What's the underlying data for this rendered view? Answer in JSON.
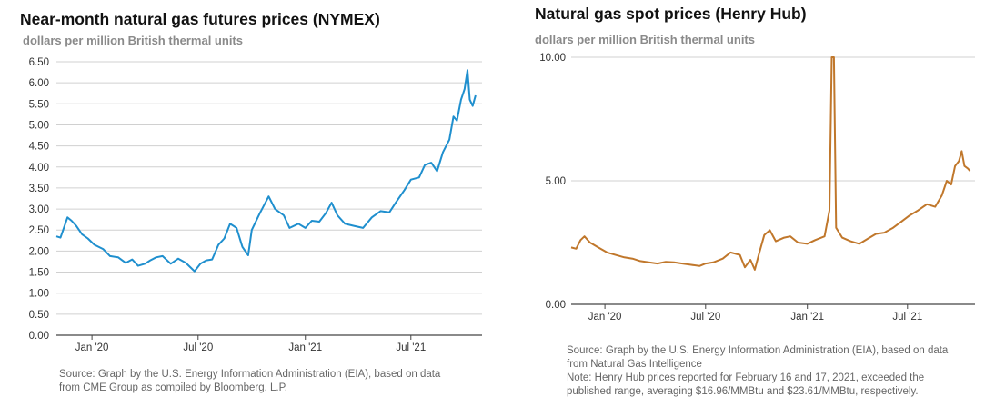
{
  "chart_data": [
    {
      "type": "line",
      "title": "Near-month natural gas futures prices (NYMEX)",
      "subtitle": "dollars per million British thermal units",
      "ylabel": "",
      "xlabel": "",
      "ylim": [
        0,
        6.5
      ],
      "xlim": [
        "2019-11-01",
        "2021-10-31"
      ],
      "yticks": [
        "6.50",
        "6.00",
        "5.50",
        "5.00",
        "4.50",
        "4.00",
        "3.50",
        "3.00",
        "2.50",
        "2.00",
        "1.50",
        "1.00",
        "0.50",
        "0.00"
      ],
      "xticks": [
        {
          "label": "Jan '20",
          "date": "2020-01-01"
        },
        {
          "label": "Jul '20",
          "date": "2020-07-01"
        },
        {
          "label": "Jan '21",
          "date": "2021-01-01"
        },
        {
          "label": "Jul '21",
          "date": "2021-07-01"
        }
      ],
      "grid": true,
      "series": [
        {
          "color": "#1f8fce",
          "points": [
            [
              "2019-11-01",
              2.35
            ],
            [
              "2019-11-08",
              2.32
            ],
            [
              "2019-11-15",
              2.6
            ],
            [
              "2019-11-20",
              2.8
            ],
            [
              "2019-11-27",
              2.72
            ],
            [
              "2019-12-05",
              2.6
            ],
            [
              "2019-12-15",
              2.4
            ],
            [
              "2019-12-25",
              2.3
            ],
            [
              "2020-01-05",
              2.15
            ],
            [
              "2020-01-20",
              2.05
            ],
            [
              "2020-02-01",
              1.88
            ],
            [
              "2020-02-15",
              1.85
            ],
            [
              "2020-02-28",
              1.72
            ],
            [
              "2020-03-10",
              1.8
            ],
            [
              "2020-03-20",
              1.65
            ],
            [
              "2020-04-01",
              1.7
            ],
            [
              "2020-04-10",
              1.78
            ],
            [
              "2020-04-20",
              1.85
            ],
            [
              "2020-05-01",
              1.88
            ],
            [
              "2020-05-15",
              1.7
            ],
            [
              "2020-05-28",
              1.82
            ],
            [
              "2020-06-10",
              1.72
            ],
            [
              "2020-06-25",
              1.52
            ],
            [
              "2020-07-05",
              1.7
            ],
            [
              "2020-07-15",
              1.78
            ],
            [
              "2020-07-25",
              1.8
            ],
            [
              "2020-08-05",
              2.15
            ],
            [
              "2020-08-15",
              2.3
            ],
            [
              "2020-08-25",
              2.65
            ],
            [
              "2020-09-05",
              2.55
            ],
            [
              "2020-09-15",
              2.1
            ],
            [
              "2020-09-25",
              1.9
            ],
            [
              "2020-10-01",
              2.5
            ],
            [
              "2020-10-15",
              2.9
            ],
            [
              "2020-10-30",
              3.3
            ],
            [
              "2020-11-10",
              3.0
            ],
            [
              "2020-11-25",
              2.85
            ],
            [
              "2020-12-05",
              2.55
            ],
            [
              "2020-12-20",
              2.65
            ],
            [
              "2021-01-01",
              2.55
            ],
            [
              "2021-01-12",
              2.72
            ],
            [
              "2021-01-25",
              2.7
            ],
            [
              "2021-02-05",
              2.9
            ],
            [
              "2021-02-15",
              3.15
            ],
            [
              "2021-02-25",
              2.85
            ],
            [
              "2021-03-10",
              2.65
            ],
            [
              "2021-03-25",
              2.6
            ],
            [
              "2021-04-10",
              2.55
            ],
            [
              "2021-04-25",
              2.8
            ],
            [
              "2021-05-10",
              2.95
            ],
            [
              "2021-05-25",
              2.92
            ],
            [
              "2021-06-05",
              3.15
            ],
            [
              "2021-06-20",
              3.45
            ],
            [
              "2021-07-01",
              3.7
            ],
            [
              "2021-07-15",
              3.75
            ],
            [
              "2021-07-25",
              4.05
            ],
            [
              "2021-08-05",
              4.1
            ],
            [
              "2021-08-15",
              3.9
            ],
            [
              "2021-08-25",
              4.35
            ],
            [
              "2021-09-05",
              4.65
            ],
            [
              "2021-09-12",
              5.2
            ],
            [
              "2021-09-18",
              5.1
            ],
            [
              "2021-09-25",
              5.6
            ],
            [
              "2021-10-01",
              5.85
            ],
            [
              "2021-10-06",
              6.3
            ],
            [
              "2021-10-10",
              5.6
            ],
            [
              "2021-10-15",
              5.45
            ],
            [
              "2021-10-20",
              5.7
            ]
          ]
        }
      ],
      "source": [
        "Source: Graph by the U.S. Energy Information Administration (EIA), based on data",
        "from CME Group as compiled by Bloomberg, L.P."
      ]
    },
    {
      "type": "line",
      "title": "Natural gas spot prices (Henry Hub)",
      "subtitle": "dollars per million British thermal units",
      "ylabel": "",
      "xlabel": "",
      "ylim": [
        0,
        10
      ],
      "xlim": [
        "2019-11-01",
        "2021-10-31"
      ],
      "yticks": [
        "10.00",
        "5.00",
        "0.00"
      ],
      "xticks": [
        {
          "label": "Jan '20",
          "date": "2020-01-01"
        },
        {
          "label": "Jul '20",
          "date": "2020-07-01"
        },
        {
          "label": "Jan '21",
          "date": "2021-01-01"
        },
        {
          "label": "Jul '21",
          "date": "2021-07-01"
        }
      ],
      "grid": true,
      "series": [
        {
          "color": "#c0772b",
          "points": [
            [
              "2019-11-01",
              2.3
            ],
            [
              "2019-11-10",
              2.25
            ],
            [
              "2019-11-18",
              2.6
            ],
            [
              "2019-11-25",
              2.75
            ],
            [
              "2019-12-05",
              2.5
            ],
            [
              "2019-12-20",
              2.3
            ],
            [
              "2020-01-05",
              2.1
            ],
            [
              "2020-01-20",
              2.0
            ],
            [
              "2020-02-05",
              1.9
            ],
            [
              "2020-02-20",
              1.85
            ],
            [
              "2020-03-05",
              1.75
            ],
            [
              "2020-03-20",
              1.7
            ],
            [
              "2020-04-05",
              1.65
            ],
            [
              "2020-04-20",
              1.72
            ],
            [
              "2020-05-05",
              1.7
            ],
            [
              "2020-05-20",
              1.65
            ],
            [
              "2020-06-05",
              1.6
            ],
            [
              "2020-06-20",
              1.55
            ],
            [
              "2020-07-01",
              1.65
            ],
            [
              "2020-07-15",
              1.7
            ],
            [
              "2020-08-01",
              1.85
            ],
            [
              "2020-08-15",
              2.1
            ],
            [
              "2020-09-01",
              2.0
            ],
            [
              "2020-09-10",
              1.5
            ],
            [
              "2020-09-20",
              1.8
            ],
            [
              "2020-09-28",
              1.4
            ],
            [
              "2020-10-05",
              2.0
            ],
            [
              "2020-10-15",
              2.8
            ],
            [
              "2020-10-25",
              3.0
            ],
            [
              "2020-11-05",
              2.55
            ],
            [
              "2020-11-20",
              2.7
            ],
            [
              "2020-12-01",
              2.75
            ],
            [
              "2020-12-15",
              2.5
            ],
            [
              "2021-01-01",
              2.45
            ],
            [
              "2021-01-15",
              2.6
            ],
            [
              "2021-02-01",
              2.75
            ],
            [
              "2021-02-10",
              3.8
            ],
            [
              "2021-02-14",
              10.0
            ],
            [
              "2021-02-18",
              10.0
            ],
            [
              "2021-02-22",
              3.1
            ],
            [
              "2021-03-05",
              2.7
            ],
            [
              "2021-03-20",
              2.55
            ],
            [
              "2021-04-05",
              2.45
            ],
            [
              "2021-04-20",
              2.65
            ],
            [
              "2021-05-05",
              2.85
            ],
            [
              "2021-05-20",
              2.9
            ],
            [
              "2021-06-05",
              3.1
            ],
            [
              "2021-06-20",
              3.35
            ],
            [
              "2021-07-05",
              3.6
            ],
            [
              "2021-07-20",
              3.8
            ],
            [
              "2021-08-05",
              4.05
            ],
            [
              "2021-08-20",
              3.95
            ],
            [
              "2021-09-01",
              4.4
            ],
            [
              "2021-09-10",
              5.0
            ],
            [
              "2021-09-18",
              4.85
            ],
            [
              "2021-09-25",
              5.6
            ],
            [
              "2021-10-02",
              5.8
            ],
            [
              "2021-10-07",
              6.2
            ],
            [
              "2021-10-12",
              5.6
            ],
            [
              "2021-10-18",
              5.5
            ],
            [
              "2021-10-22",
              5.4
            ]
          ]
        }
      ],
      "source": [
        "Source: Graph by the U.S. Energy Information Administration (EIA), based on data",
        "from Natural Gas Intelligence",
        "Note: Henry Hub prices reported for February 16 and 17, 2021, exceeded the",
        "published range, averaging $16.96/MMBtu and $23.61/MMBtu, respectively."
      ]
    }
  ]
}
